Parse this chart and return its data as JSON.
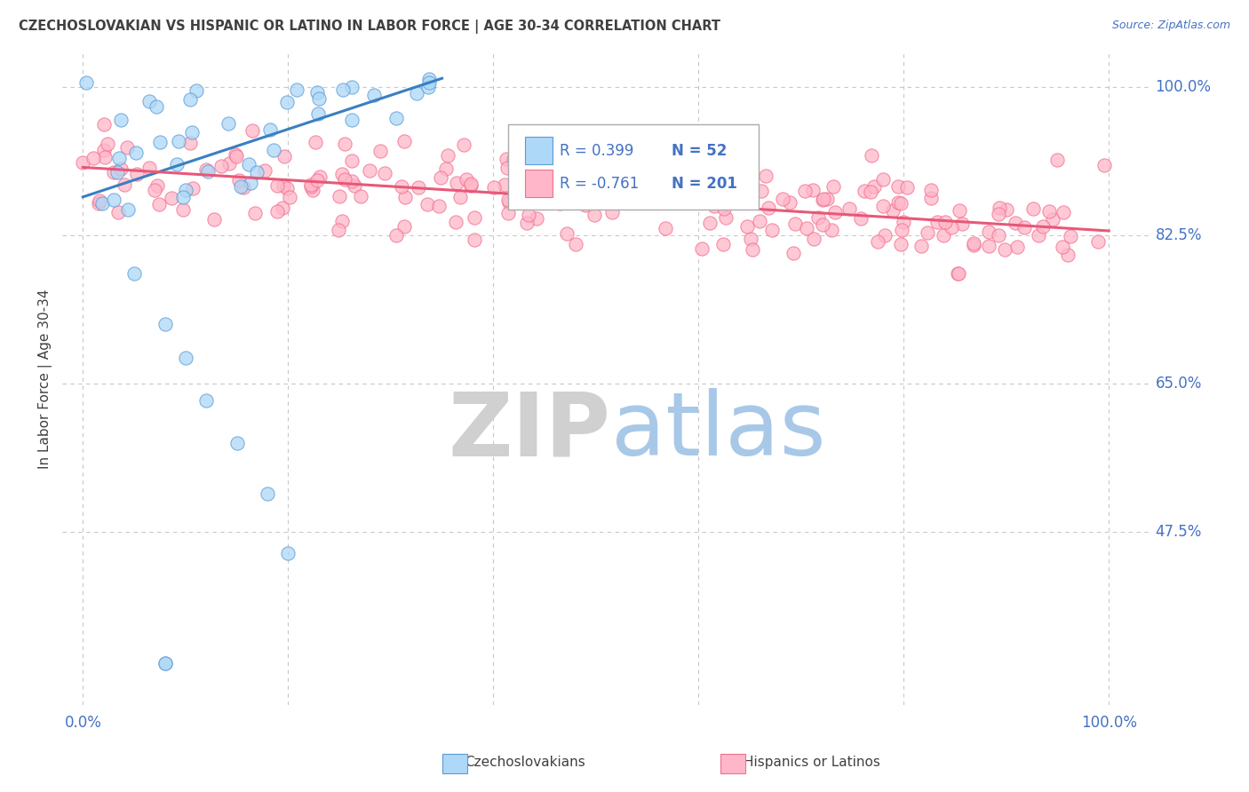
{
  "title": "CZECHOSLOVAKIAN VS HISPANIC OR LATINO IN LABOR FORCE | AGE 30-34 CORRELATION CHART",
  "source": "Source: ZipAtlas.com",
  "ylabel": "In Labor Force | Age 30-34",
  "xlim": [
    -2,
    104
  ],
  "ylim": [
    27,
    104
  ],
  "yticks": [
    47.5,
    65.0,
    82.5,
    100.0
  ],
  "xticks": [
    0,
    20,
    40,
    60,
    80,
    100
  ],
  "r_czech": 0.399,
  "n_czech": 52,
  "r_hispanic": -0.761,
  "n_hispanic": 201,
  "czech_fill": "#add8f7",
  "czech_edge": "#5b9bd5",
  "hispanic_fill": "#ffb6c8",
  "hispanic_edge": "#f07090",
  "czech_line": "#3a7fc1",
  "hispanic_line": "#e85878",
  "axis_color": "#4472c4",
  "title_color": "#404040",
  "grid_color": "#c8c8c8",
  "background": "#ffffff"
}
